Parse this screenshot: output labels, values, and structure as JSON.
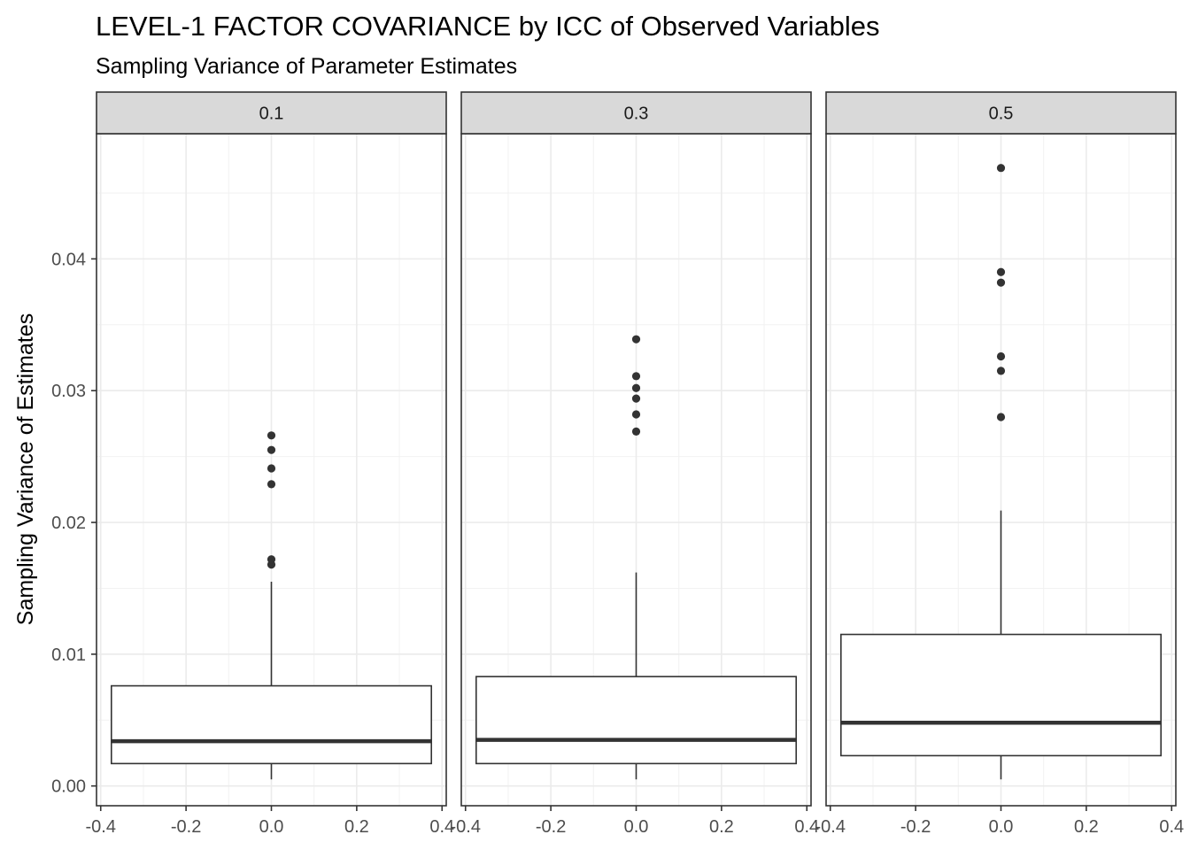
{
  "chart_data": {
    "type": "boxplot",
    "title": "LEVEL-1 FACTOR COVARIANCE by ICC of Observed Variables",
    "subtitle": "Sampling Variance of Parameter Estimates",
    "xlabel": "",
    "ylabel": "Sampling Variance of Estimates",
    "xlim": [
      -0.4,
      0.4
    ],
    "ylim": [
      -0.0015,
      0.0495
    ],
    "x_ticks": [
      -0.4,
      -0.2,
      0.0,
      0.2,
      0.4
    ],
    "x_tick_labels": [
      "-0.4",
      "-0.2",
      "0.0",
      "0.2",
      "0.4"
    ],
    "y_ticks": [
      0.0,
      0.01,
      0.02,
      0.03,
      0.04
    ],
    "y_tick_labels": [
      "0.00",
      "0.01",
      "0.02",
      "0.03",
      "0.04"
    ],
    "grid": true,
    "box_x_range": [
      -0.375,
      0.375
    ],
    "facets": [
      {
        "label": "0.1",
        "box": {
          "min": 0.0005,
          "q1": 0.0017,
          "median": 0.0034,
          "q3": 0.0076,
          "max": 0.0155
        },
        "outliers": [
          0.0168,
          0.0172,
          0.0229,
          0.0241,
          0.0255,
          0.0266
        ]
      },
      {
        "label": "0.3",
        "box": {
          "min": 0.0005,
          "q1": 0.0017,
          "median": 0.0035,
          "q3": 0.0083,
          "max": 0.0162
        },
        "outliers": [
          0.0269,
          0.0282,
          0.0294,
          0.0302,
          0.0311,
          0.0339
        ]
      },
      {
        "label": "0.5",
        "box": {
          "min": 0.0005,
          "q1": 0.0023,
          "median": 0.0048,
          "q3": 0.0115,
          "max": 0.0209
        },
        "outliers": [
          0.028,
          0.0315,
          0.0326,
          0.0382,
          0.039,
          0.0469
        ]
      }
    ]
  }
}
